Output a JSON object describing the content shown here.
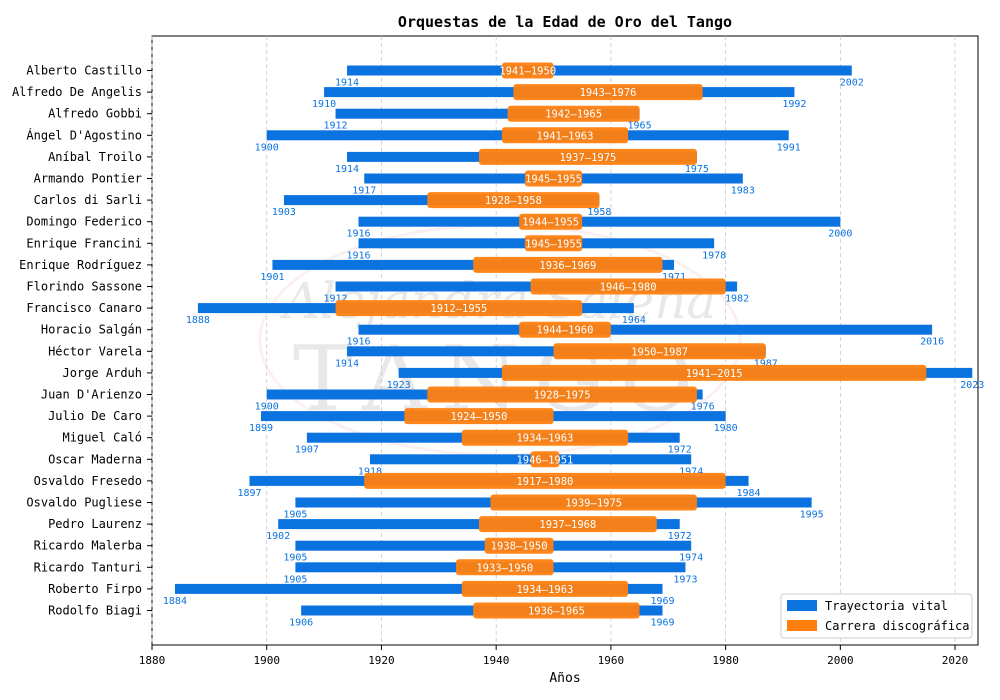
{
  "chart_data": {
    "type": "bar",
    "title": "Orquestas de la Edad de Oro del Tango",
    "xlabel": "Años",
    "ylabel": "",
    "xlim": [
      1880,
      2024
    ],
    "xticks": [
      1880,
      1900,
      1920,
      1940,
      1960,
      1980,
      2000,
      2020
    ],
    "grid": "x-dashed",
    "legend_position": "bottom-right",
    "legend": [
      {
        "label": "Trayectoria vital",
        "color": "#0b73e0"
      },
      {
        "label": "Carrera discográfica",
        "color": "#ff7f0e"
      }
    ],
    "watermark_text": "Alejandra Salena TANGO",
    "series": [
      {
        "name": "Trayectoria vital",
        "kind": "life",
        "color": "#0b73e0"
      },
      {
        "name": "Carrera discográfica",
        "kind": "career",
        "color": "#ff7f0e"
      }
    ],
    "orchestras": [
      {
        "name": "Alberto Castillo",
        "birth": 1914,
        "death": 2002,
        "career_start": 1941,
        "career_end": 1950
      },
      {
        "name": "Alfredo De Angelis",
        "birth": 1910,
        "death": 1992,
        "career_start": 1943,
        "career_end": 1976
      },
      {
        "name": "Alfredo Gobbi",
        "birth": 1912,
        "death": 1965,
        "career_start": 1942,
        "career_end": 1965
      },
      {
        "name": "Ángel D'Agostino",
        "birth": 1900,
        "death": 1991,
        "career_start": 1941,
        "career_end": 1963
      },
      {
        "name": "Aníbal Troilo",
        "birth": 1914,
        "death": 1975,
        "career_start": 1937,
        "career_end": 1975
      },
      {
        "name": "Armando Pontier",
        "birth": 1917,
        "death": 1983,
        "career_start": 1945,
        "career_end": 1955
      },
      {
        "name": "Carlos di Sarli",
        "birth": 1903,
        "death": 1958,
        "career_start": 1928,
        "career_end": 1958
      },
      {
        "name": "Domingo Federico",
        "birth": 1916,
        "death": 2000,
        "career_start": 1944,
        "career_end": 1955
      },
      {
        "name": "Enrique Francini",
        "birth": 1916,
        "death": 1978,
        "career_start": 1945,
        "career_end": 1955
      },
      {
        "name": "Enrique Rodríguez",
        "birth": 1901,
        "death": 1971,
        "career_start": 1936,
        "career_end": 1969
      },
      {
        "name": "Florindo Sassone",
        "birth": 1912,
        "death": 1982,
        "career_start": 1946,
        "career_end": 1980
      },
      {
        "name": "Francisco Canaro",
        "birth": 1888,
        "death": 1964,
        "career_start": 1912,
        "career_end": 1955
      },
      {
        "name": "Horacio Salgán",
        "birth": 1916,
        "death": 2016,
        "career_start": 1944,
        "career_end": 1960
      },
      {
        "name": "Héctor Varela",
        "birth": 1914,
        "death": 1987,
        "career_start": 1950,
        "career_end": 1987
      },
      {
        "name": "Jorge Arduh",
        "birth": 1923,
        "death": 2023,
        "career_start": 1941,
        "career_end": 2015
      },
      {
        "name": "Juan D'Arienzo",
        "birth": 1900,
        "death": 1976,
        "career_start": 1928,
        "career_end": 1975
      },
      {
        "name": "Julio De Caro",
        "birth": 1899,
        "death": 1980,
        "career_start": 1924,
        "career_end": 1950
      },
      {
        "name": "Miguel Caló",
        "birth": 1907,
        "death": 1972,
        "career_start": 1934,
        "career_end": 1963
      },
      {
        "name": "Oscar Maderna",
        "birth": 1918,
        "death": 1974,
        "career_start": 1946,
        "career_end": 1951
      },
      {
        "name": "Osvaldo Fresedo",
        "birth": 1897,
        "death": 1984,
        "career_start": 1917,
        "career_end": 1980
      },
      {
        "name": "Osvaldo Pugliese",
        "birth": 1905,
        "death": 1995,
        "career_start": 1939,
        "career_end": 1975
      },
      {
        "name": "Pedro Laurenz",
        "birth": 1902,
        "death": 1972,
        "career_start": 1937,
        "career_end": 1968
      },
      {
        "name": "Ricardo Malerba",
        "birth": 1905,
        "death": 1974,
        "career_start": 1938,
        "career_end": 1950
      },
      {
        "name": "Ricardo Tanturi",
        "birth": 1905,
        "death": 1973,
        "career_start": 1933,
        "career_end": 1950
      },
      {
        "name": "Roberto Firpo",
        "birth": 1884,
        "death": 1969,
        "career_start": 1934,
        "career_end": 1963
      },
      {
        "name": "Rodolfo Biagi",
        "birth": 1906,
        "death": 1969,
        "career_start": 1936,
        "career_end": 1965
      }
    ]
  }
}
